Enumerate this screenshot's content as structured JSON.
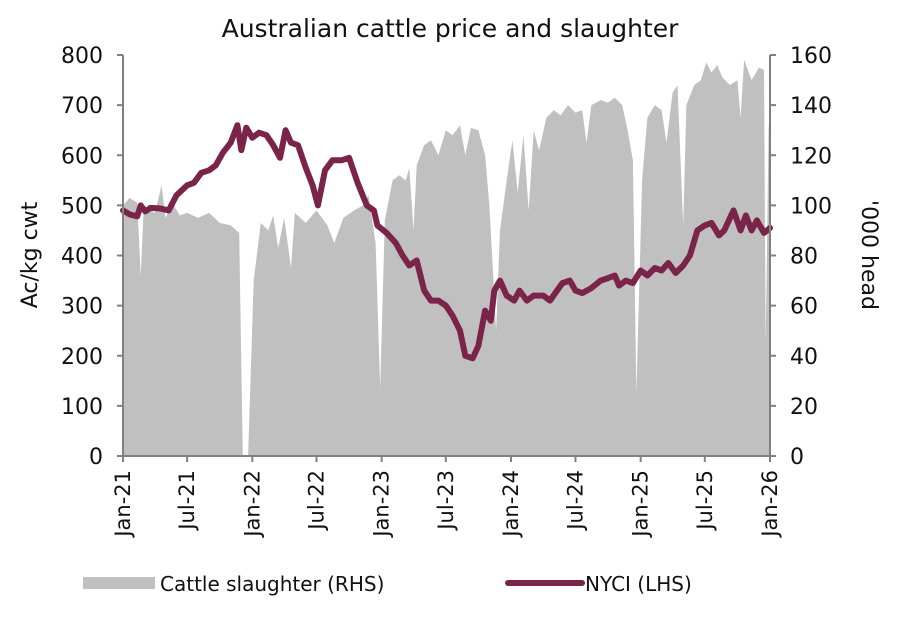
{
  "chart_data": {
    "type": "area+line",
    "title": "Australian cattle price and slaughter",
    "y_left_label": "Ac/kg cwt",
    "y_right_label": "'000 head",
    "y_left_lim": [
      0,
      800
    ],
    "y_right_lim": [
      0,
      160
    ],
    "y_left_ticks": [
      "0",
      "100",
      "200",
      "300",
      "400",
      "500",
      "600",
      "700",
      "800"
    ],
    "y_right_ticks": [
      "0",
      "20",
      "40",
      "60",
      "80",
      "100",
      "120",
      "140",
      "160"
    ],
    "x_ticks": [
      {
        "date": "2021-01-01",
        "label": "Jan-21"
      },
      {
        "date": "2021-07-01",
        "label": "Jul-21"
      },
      {
        "date": "2022-01-01",
        "label": "Jan-22"
      },
      {
        "date": "2022-07-01",
        "label": "Jul-22"
      },
      {
        "date": "2023-01-01",
        "label": "Jan-23"
      },
      {
        "date": "2023-07-01",
        "label": "Jul-23"
      },
      {
        "date": "2024-01-01",
        "label": "Jan-24"
      },
      {
        "date": "2024-07-01",
        "label": "Jul-24"
      },
      {
        "date": "2025-01-01",
        "label": "Jan-25"
      },
      {
        "date": "2025-07-01",
        "label": "Jul-25"
      },
      {
        "date": "2026-01-01",
        "label": "Jan-26"
      }
    ],
    "x_range": [
      "2021-01-01",
      "2026-01-01"
    ],
    "legend_placement": "bottom",
    "grid": false,
    "series": [
      {
        "name": "Cattle slaughter (RHS)",
        "type": "area",
        "axis": "right",
        "color": "#c0c0c0",
        "points": [
          [
            "2021-01-01",
            100
          ],
          [
            "2021-01-20",
            103
          ],
          [
            "2021-02-10",
            101
          ],
          [
            "2021-02-20",
            72
          ],
          [
            "2021-03-01",
            100
          ],
          [
            "2021-04-01",
            97
          ],
          [
            "2021-04-20",
            108
          ],
          [
            "2021-05-01",
            95
          ],
          [
            "2021-05-20",
            101
          ],
          [
            "2021-06-10",
            96
          ],
          [
            "2021-07-01",
            97
          ],
          [
            "2021-08-01",
            95
          ],
          [
            "2021-09-01",
            97
          ],
          [
            "2021-10-01",
            93
          ],
          [
            "2021-11-01",
            92
          ],
          [
            "2021-11-25",
            89
          ],
          [
            "2021-12-05",
            0
          ],
          [
            "2021-12-20",
            0
          ],
          [
            "2022-01-05",
            70
          ],
          [
            "2022-01-25",
            93
          ],
          [
            "2022-02-15",
            90
          ],
          [
            "2022-03-01",
            96
          ],
          [
            "2022-03-15",
            83
          ],
          [
            "2022-04-01",
            95
          ],
          [
            "2022-04-20",
            75
          ],
          [
            "2022-05-01",
            97
          ],
          [
            "2022-06-01",
            93
          ],
          [
            "2022-07-01",
            98
          ],
          [
            "2022-08-01",
            92
          ],
          [
            "2022-08-20",
            85
          ],
          [
            "2022-09-15",
            95
          ],
          [
            "2022-10-15",
            98
          ],
          [
            "2022-11-10",
            100
          ],
          [
            "2022-11-25",
            104
          ],
          [
            "2022-12-15",
            85
          ],
          [
            "2022-12-28",
            27
          ],
          [
            "2023-01-10",
            94
          ],
          [
            "2023-02-01",
            110
          ],
          [
            "2023-02-20",
            112
          ],
          [
            "2023-03-10",
            110
          ],
          [
            "2023-03-20",
            115
          ],
          [
            "2023-04-01",
            90
          ],
          [
            "2023-04-10",
            116
          ],
          [
            "2023-05-01",
            124
          ],
          [
            "2023-05-20",
            126
          ],
          [
            "2023-06-10",
            120
          ],
          [
            "2023-07-01",
            130
          ],
          [
            "2023-07-20",
            128
          ],
          [
            "2023-08-10",
            132
          ],
          [
            "2023-08-25",
            120
          ],
          [
            "2023-09-10",
            131
          ],
          [
            "2023-10-01",
            130
          ],
          [
            "2023-10-20",
            120
          ],
          [
            "2023-11-01",
            100
          ],
          [
            "2023-11-20",
            50
          ],
          [
            "2023-12-01",
            90
          ],
          [
            "2023-12-20",
            110
          ],
          [
            "2024-01-05",
            126
          ],
          [
            "2024-01-20",
            105
          ],
          [
            "2024-02-05",
            128
          ],
          [
            "2024-02-20",
            98
          ],
          [
            "2024-03-05",
            130
          ],
          [
            "2024-03-20",
            122
          ],
          [
            "2024-04-10",
            135
          ],
          [
            "2024-05-01",
            138
          ],
          [
            "2024-05-20",
            136
          ],
          [
            "2024-06-10",
            140
          ],
          [
            "2024-07-01",
            137
          ],
          [
            "2024-07-20",
            138
          ],
          [
            "2024-08-01",
            125
          ],
          [
            "2024-08-15",
            140
          ],
          [
            "2024-09-10",
            142
          ],
          [
            "2024-10-01",
            141
          ],
          [
            "2024-10-20",
            143
          ],
          [
            "2024-11-10",
            140
          ],
          [
            "2024-11-25",
            130
          ],
          [
            "2024-12-10",
            118
          ],
          [
            "2024-12-20",
            25
          ],
          [
            "2025-01-05",
            110
          ],
          [
            "2025-01-20",
            135
          ],
          [
            "2025-02-10",
            140
          ],
          [
            "2025-03-01",
            138
          ],
          [
            "2025-03-15",
            125
          ],
          [
            "2025-04-01",
            145
          ],
          [
            "2025-04-15",
            148
          ],
          [
            "2025-05-01",
            92
          ],
          [
            "2025-05-10",
            140
          ],
          [
            "2025-06-01",
            148
          ],
          [
            "2025-06-20",
            150
          ],
          [
            "2025-07-05",
            157
          ],
          [
            "2025-07-20",
            153
          ],
          [
            "2025-08-05",
            156
          ],
          [
            "2025-08-20",
            151
          ],
          [
            "2025-09-10",
            148
          ],
          [
            "2025-10-01",
            150
          ],
          [
            "2025-10-10",
            135
          ],
          [
            "2025-10-20",
            158
          ],
          [
            "2025-11-10",
            150
          ],
          [
            "2025-12-01",
            155
          ],
          [
            "2025-12-15",
            154
          ],
          [
            "2025-12-20",
            45
          ],
          [
            "2025-12-28",
            130
          ],
          [
            "2026-01-01",
            140
          ]
        ]
      },
      {
        "name": "NYCI (LHS)",
        "type": "line",
        "axis": "left",
        "color": "#7b2449",
        "points": [
          [
            "2021-01-01",
            490
          ],
          [
            "2021-01-20",
            482
          ],
          [
            "2021-02-10",
            478
          ],
          [
            "2021-02-20",
            500
          ],
          [
            "2021-03-05",
            488
          ],
          [
            "2021-03-20",
            495
          ],
          [
            "2021-04-15",
            494
          ],
          [
            "2021-05-10",
            490
          ],
          [
            "2021-06-01",
            520
          ],
          [
            "2021-07-01",
            540
          ],
          [
            "2021-07-20",
            545
          ],
          [
            "2021-08-10",
            565
          ],
          [
            "2021-09-01",
            570
          ],
          [
            "2021-09-20",
            580
          ],
          [
            "2021-10-10",
            605
          ],
          [
            "2021-11-01",
            625
          ],
          [
            "2021-11-20",
            660
          ],
          [
            "2021-12-01",
            610
          ],
          [
            "2021-12-15",
            655
          ],
          [
            "2022-01-01",
            635
          ],
          [
            "2022-01-20",
            645
          ],
          [
            "2022-02-10",
            640
          ],
          [
            "2022-03-01",
            620
          ],
          [
            "2022-03-20",
            595
          ],
          [
            "2022-04-05",
            650
          ],
          [
            "2022-04-20",
            625
          ],
          [
            "2022-05-10",
            620
          ],
          [
            "2022-06-01",
            575
          ],
          [
            "2022-06-20",
            540
          ],
          [
            "2022-07-05",
            500
          ],
          [
            "2022-07-25",
            570
          ],
          [
            "2022-08-15",
            590
          ],
          [
            "2022-09-10",
            590
          ],
          [
            "2022-10-01",
            595
          ],
          [
            "2022-10-25",
            545
          ],
          [
            "2022-11-20",
            500
          ],
          [
            "2022-12-10",
            490
          ],
          [
            "2022-12-20",
            460
          ],
          [
            "2023-01-15",
            445
          ],
          [
            "2023-02-10",
            425
          ],
          [
            "2023-03-01",
            400
          ],
          [
            "2023-03-20",
            380
          ],
          [
            "2023-04-10",
            390
          ],
          [
            "2023-05-01",
            330
          ],
          [
            "2023-05-20",
            310
          ],
          [
            "2023-06-10",
            310
          ],
          [
            "2023-07-01",
            300
          ],
          [
            "2023-07-20",
            280
          ],
          [
            "2023-08-10",
            250
          ],
          [
            "2023-08-25",
            200
          ],
          [
            "2023-09-15",
            195
          ],
          [
            "2023-10-01",
            220
          ],
          [
            "2023-10-20",
            290
          ],
          [
            "2023-11-05",
            270
          ],
          [
            "2023-11-15",
            330
          ],
          [
            "2023-12-01",
            350
          ],
          [
            "2023-12-20",
            320
          ],
          [
            "2024-01-10",
            310
          ],
          [
            "2024-01-25",
            330
          ],
          [
            "2024-02-15",
            310
          ],
          [
            "2024-03-05",
            320
          ],
          [
            "2024-04-01",
            320
          ],
          [
            "2024-04-20",
            310
          ],
          [
            "2024-05-10",
            330
          ],
          [
            "2024-05-25",
            345
          ],
          [
            "2024-06-15",
            350
          ],
          [
            "2024-07-01",
            330
          ],
          [
            "2024-07-20",
            325
          ],
          [
            "2024-08-15",
            335
          ],
          [
            "2024-09-10",
            350
          ],
          [
            "2024-10-01",
            355
          ],
          [
            "2024-10-20",
            360
          ],
          [
            "2024-11-01",
            340
          ],
          [
            "2024-11-20",
            350
          ],
          [
            "2024-12-10",
            345
          ],
          [
            "2025-01-01",
            370
          ],
          [
            "2025-01-20",
            360
          ],
          [
            "2025-02-10",
            375
          ],
          [
            "2025-03-01",
            370
          ],
          [
            "2025-03-20",
            385
          ],
          [
            "2025-04-10",
            365
          ],
          [
            "2025-05-01",
            380
          ],
          [
            "2025-05-20",
            400
          ],
          [
            "2025-06-10",
            450
          ],
          [
            "2025-07-01",
            460
          ],
          [
            "2025-07-20",
            465
          ],
          [
            "2025-08-10",
            440
          ],
          [
            "2025-08-25",
            450
          ],
          [
            "2025-09-20",
            490
          ],
          [
            "2025-10-10",
            450
          ],
          [
            "2025-10-25",
            480
          ],
          [
            "2025-11-10",
            450
          ],
          [
            "2025-11-25",
            470
          ],
          [
            "2025-12-15",
            445
          ],
          [
            "2026-01-01",
            455
          ]
        ]
      }
    ]
  }
}
